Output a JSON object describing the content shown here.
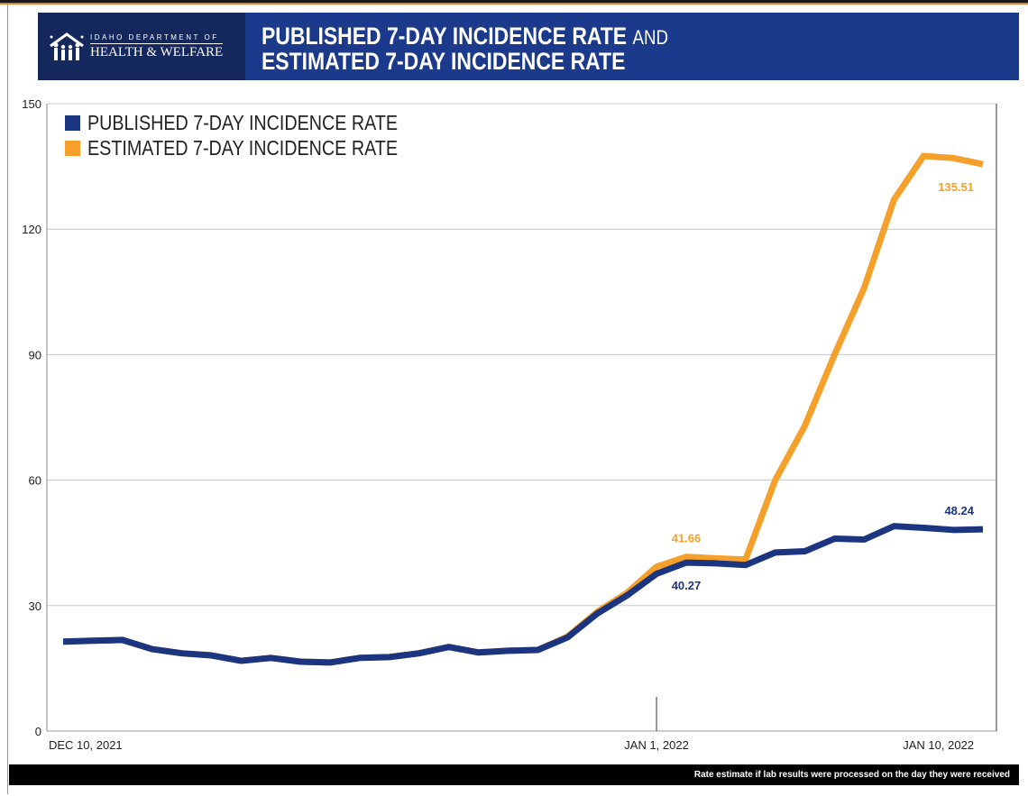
{
  "header": {
    "logo_small": "IDAHO DEPARTMENT OF",
    "logo_big": "HEALTH & WELFARE",
    "title_line1": "PUBLISHED 7-DAY INCIDENCE RATE",
    "title_and": "AND",
    "title_line2": "ESTIMATED 7-DAY INCIDENCE RATE"
  },
  "footer": {
    "note": "Rate estimate if lab results were processed on the day they were received"
  },
  "chart_data": {
    "type": "line",
    "title": "PUBLISHED 7-DAY INCIDENCE RATE AND ESTIMATED 7-DAY INCIDENCE RATE",
    "xlabel": "",
    "ylabel": "",
    "ylim": [
      0,
      150
    ],
    "yticks": [
      0,
      30,
      60,
      90,
      120,
      150
    ],
    "grid": true,
    "legend": "top-left",
    "x_ticks": [
      {
        "label": "DEC 10, 2021",
        "index": 0
      },
      {
        "label": "JAN 1, 2022",
        "index": 20
      },
      {
        "label": "JAN 10, 2022",
        "index": 29.5
      }
    ],
    "series": [
      {
        "name": "PUBLISHED 7-DAY INCIDENCE RATE",
        "color": "#1c3580",
        "values": [
          21.4,
          21.6,
          21.8,
          19.6,
          18.6,
          18.1,
          16.8,
          17.5,
          16.6,
          16.4,
          17.5,
          17.7,
          18.6,
          20.1,
          18.8,
          19.2,
          19.4,
          22.4,
          28.1,
          32.4,
          37.6,
          40.27,
          40.1,
          39.7,
          42.7,
          43.0,
          46.0,
          45.8,
          49.0,
          48.6,
          48.1,
          48.24
        ],
        "labels": [
          {
            "index": 21,
            "text": "40.27",
            "position": "below"
          },
          {
            "index": 31,
            "text": "48.24",
            "position": "above"
          }
        ]
      },
      {
        "name": "ESTIMATED 7-DAY INCIDENCE RATE",
        "color": "#f5a02a",
        "values": [
          21.4,
          21.6,
          21.8,
          19.6,
          18.6,
          18.1,
          16.8,
          17.5,
          16.6,
          16.4,
          17.5,
          17.7,
          18.6,
          20.1,
          18.8,
          19.2,
          19.4,
          22.6,
          28.5,
          33.0,
          39.3,
          41.66,
          41.3,
          41.0,
          60.0,
          73.0,
          90.0,
          106.0,
          127.0,
          137.5,
          137.0,
          135.51
        ],
        "labels": [
          {
            "index": 21,
            "text": "41.66",
            "position": "above"
          },
          {
            "index": 31,
            "text": "135.51",
            "position": "below"
          }
        ]
      }
    ]
  }
}
